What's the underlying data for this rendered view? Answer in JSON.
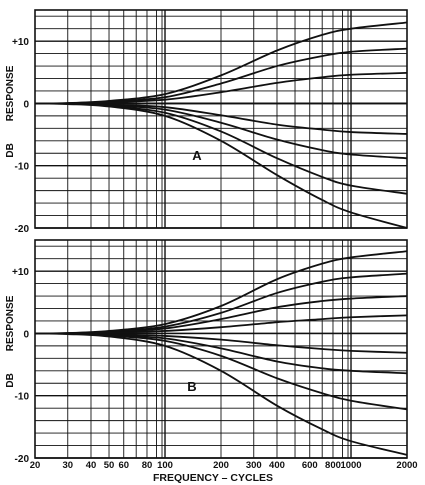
{
  "chart_data": [
    {
      "type": "line",
      "panel_label": "A",
      "xscale": "log",
      "xlim": [
        20,
        2000
      ],
      "ylim": [
        -20,
        15
      ],
      "y_ticks": [
        {
          "value": 10,
          "label": "+10"
        },
        {
          "value": 0,
          "label": "0"
        },
        {
          "value": -10,
          "label": "-10"
        },
        {
          "value": -20,
          "label": "-20"
        }
      ],
      "y_label_parts": [
        "DB",
        "RESPONSE"
      ],
      "x": [
        20,
        30,
        50,
        100,
        200,
        400,
        700,
        1000,
        2000
      ],
      "series": [
        {
          "values": [
            0,
            0.05,
            0.4,
            1.5,
            4.5,
            8.5,
            11.0,
            12.0,
            13.0
          ]
        },
        {
          "values": [
            0,
            0.05,
            0.3,
            1.0,
            3.2,
            6.0,
            7.6,
            8.3,
            8.8
          ]
        },
        {
          "values": [
            0,
            0.03,
            0.2,
            0.6,
            1.8,
            3.3,
            4.2,
            4.6,
            4.9
          ]
        },
        {
          "values": [
            0,
            0,
            0,
            0,
            0,
            0,
            0,
            0,
            0
          ]
        },
        {
          "values": [
            0,
            -0.03,
            -0.2,
            -0.6,
            -1.9,
            -3.4,
            -4.2,
            -4.6,
            -4.9
          ]
        },
        {
          "values": [
            0,
            -0.05,
            -0.3,
            -1.0,
            -3.1,
            -5.8,
            -7.5,
            -8.2,
            -8.8
          ]
        },
        {
          "values": [
            0,
            -0.05,
            -0.4,
            -1.5,
            -4.5,
            -8.8,
            -11.8,
            -13.2,
            -14.5
          ]
        },
        {
          "values": [
            0,
            -0.1,
            -0.5,
            -2.0,
            -6.0,
            -11.5,
            -15.5,
            -17.5,
            -20.0
          ]
        }
      ]
    },
    {
      "type": "line",
      "panel_label": "B",
      "xscale": "log",
      "xlim": [
        20,
        2000
      ],
      "ylim": [
        -20,
        15
      ],
      "y_ticks": [
        {
          "value": 10,
          "label": "+10"
        },
        {
          "value": 0,
          "label": "0"
        },
        {
          "value": -10,
          "label": "-10"
        },
        {
          "value": -20,
          "label": "-20"
        }
      ],
      "y_label_parts": [
        "DB",
        "RESPONSE"
      ],
      "xlabel": "FREQUENCY  –  CYCLES",
      "x_ticks": [
        20,
        30,
        40,
        50,
        60,
        80,
        100,
        200,
        300,
        400,
        600,
        800,
        1000,
        2000
      ],
      "x": [
        20,
        30,
        50,
        100,
        200,
        400,
        700,
        1000,
        2000
      ],
      "series": [
        {
          "values": [
            0,
            0.05,
            0.4,
            1.5,
            4.4,
            8.7,
            11.2,
            12.2,
            13.2
          ]
        },
        {
          "values": [
            0,
            0.05,
            0.3,
            1.1,
            3.3,
            6.5,
            8.3,
            9.0,
            9.6
          ]
        },
        {
          "values": [
            0,
            0.04,
            0.25,
            0.8,
            2.3,
            4.2,
            5.2,
            5.6,
            6.0
          ]
        },
        {
          "values": [
            0,
            0.02,
            0.12,
            0.4,
            1.0,
            1.8,
            2.3,
            2.6,
            2.9
          ]
        },
        {
          "values": [
            0,
            -0.02,
            -0.12,
            -0.4,
            -1.0,
            -1.9,
            -2.5,
            -2.8,
            -3.1
          ]
        },
        {
          "values": [
            0,
            -0.04,
            -0.25,
            -0.8,
            -2.4,
            -4.5,
            -5.6,
            -6.0,
            -6.4
          ]
        },
        {
          "values": [
            0,
            -0.05,
            -0.35,
            -1.2,
            -3.6,
            -7.2,
            -9.6,
            -10.8,
            -12.2
          ]
        },
        {
          "values": [
            0,
            -0.1,
            -0.5,
            -2.0,
            -6.0,
            -11.6,
            -15.4,
            -17.3,
            -19.5
          ]
        }
      ]
    }
  ]
}
